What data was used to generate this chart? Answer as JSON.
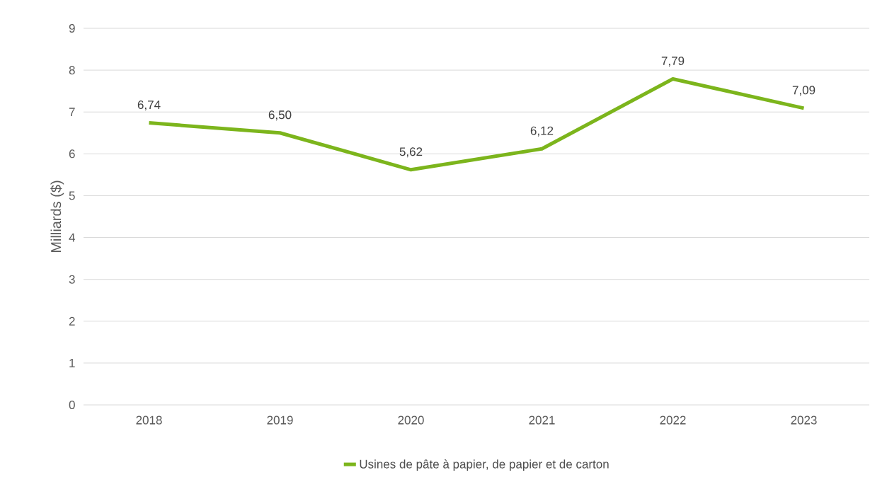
{
  "chart_data": {
    "type": "line",
    "ylabel": "Milliards ($)",
    "categories": [
      "2018",
      "2019",
      "2020",
      "2021",
      "2022",
      "2023"
    ],
    "series": [
      {
        "name": "Usines de pâte à papier, de papier et de carton",
        "color": "#7cb51c",
        "values": [
          6.74,
          6.5,
          5.62,
          6.12,
          7.79,
          7.09
        ],
        "value_labels": [
          "6,74",
          "6,50",
          "5,62",
          "6,12",
          "7,79",
          "7,09"
        ]
      }
    ],
    "ylim": [
      0,
      9
    ],
    "yticks": [
      0,
      1,
      2,
      3,
      4,
      5,
      6,
      7,
      8,
      9
    ],
    "grid": "y",
    "legend": "bottom",
    "marker": "none",
    "line_style": "solid"
  }
}
